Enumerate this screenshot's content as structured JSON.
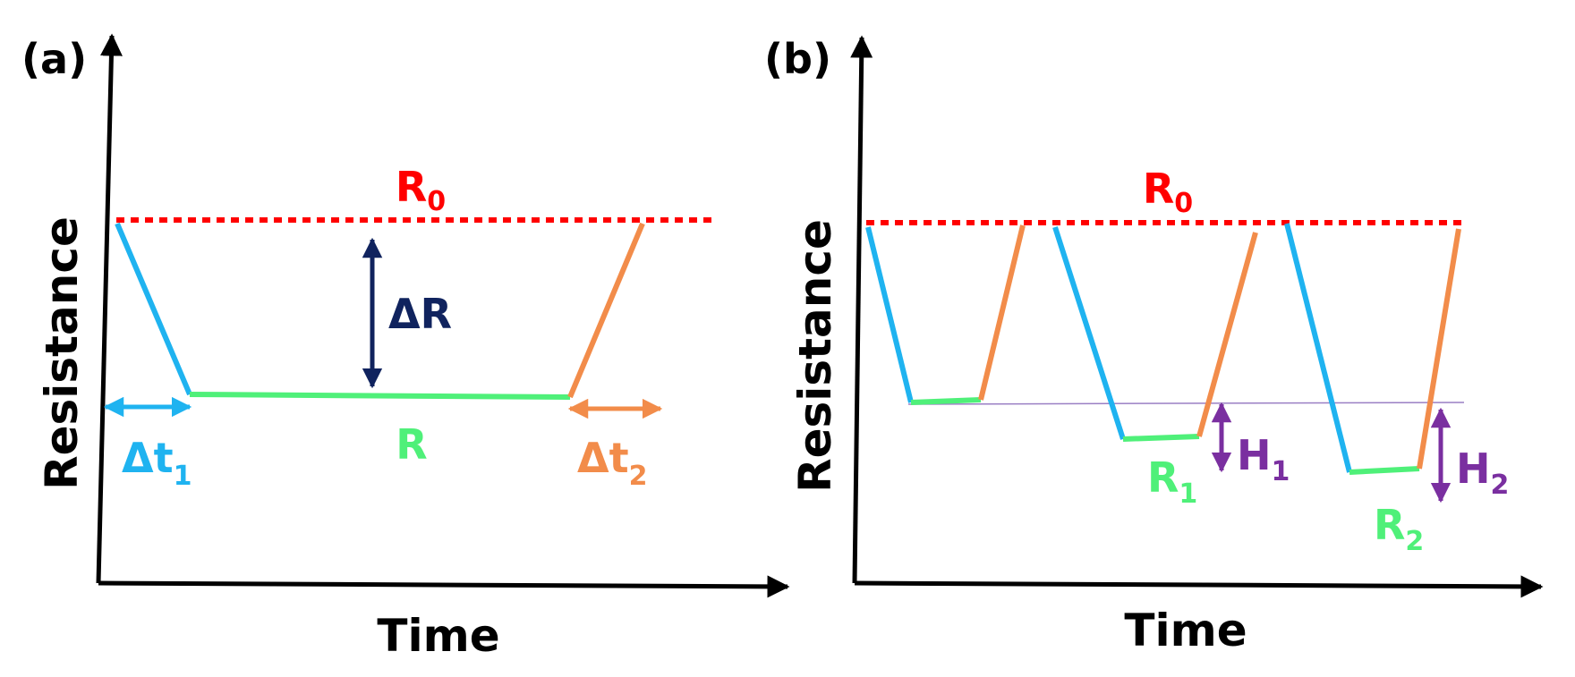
{
  "colors": {
    "baseline": "#ff0000",
    "response": "#1fb3f0",
    "recovery": "#f28c4a",
    "steady": "#4ff079",
    "delta_r": "#10235e",
    "hysteresis": "#7a2fa0",
    "axis": "#000000",
    "guide": "#9a7fc4"
  },
  "panel_a": {
    "label": "(a)",
    "y_axis_title": "Resistance",
    "x_axis_title": "Time",
    "r0": {
      "base": "R",
      "sub": "0"
    },
    "delta_r": "ΔR",
    "r": "R",
    "dt1": {
      "base": "Δt",
      "sub": "1"
    },
    "dt2": {
      "base": "Δt",
      "sub": "2"
    }
  },
  "panel_b": {
    "label": "(b)",
    "y_axis_title": "Resistance",
    "x_axis_title": "Time",
    "r0": {
      "base": "R",
      "sub": "0"
    },
    "r1": {
      "base": "R",
      "sub": "1"
    },
    "r2": {
      "base": "R",
      "sub": "2"
    },
    "h1": {
      "base": "H",
      "sub": "1"
    },
    "h2": {
      "base": "H",
      "sub": "2"
    }
  }
}
